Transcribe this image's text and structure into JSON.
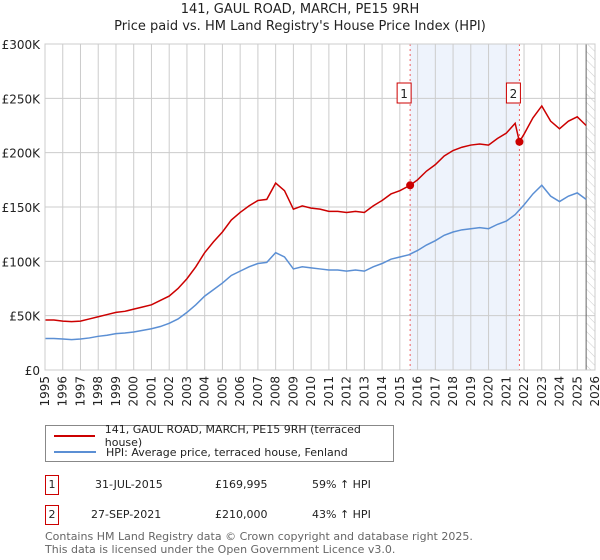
{
  "chart_data": {
    "type": "line",
    "title": "141, GAUL ROAD, MARCH, PE15 9RH",
    "subtitle": "Price paid vs. HM Land Registry's House Price Index (HPI)",
    "xlim": [
      1995,
      2026
    ],
    "ylim": [
      0,
      300000
    ],
    "yticks": [
      {
        "v": 0,
        "label": "£0"
      },
      {
        "v": 50000,
        "label": "£50K"
      },
      {
        "v": 100000,
        "label": "£100K"
      },
      {
        "v": 150000,
        "label": "£150K"
      },
      {
        "v": 200000,
        "label": "£200K"
      },
      {
        "v": 250000,
        "label": "£250K"
      },
      {
        "v": 300000,
        "label": "£300K"
      }
    ],
    "xticks": [
      "1995",
      "1996",
      "1997",
      "1998",
      "1999",
      "2000",
      "2001",
      "2002",
      "2003",
      "2004",
      "2005",
      "2006",
      "2007",
      "2008",
      "2009",
      "2010",
      "2011",
      "2012",
      "2013",
      "2014",
      "2015",
      "2016",
      "2017",
      "2018",
      "2019",
      "2020",
      "2021",
      "2022",
      "2023",
      "2024",
      "2025",
      "2026"
    ],
    "grid": true,
    "shaded_period": [
      2015.58,
      2021.74
    ],
    "future_hatch_from": 2025.5,
    "series": [
      {
        "name": "141, GAUL ROAD, MARCH, PE15 9RH (terraced house)",
        "color": "#cc0000",
        "points": [
          [
            1995,
            46
          ],
          [
            1995.5,
            46
          ],
          [
            1996,
            45
          ],
          [
            1996.5,
            44.5
          ],
          [
            1997,
            45
          ],
          [
            1997.5,
            47
          ],
          [
            1998,
            49
          ],
          [
            1998.5,
            51
          ],
          [
            1999,
            53
          ],
          [
            1999.5,
            54
          ],
          [
            2000,
            56
          ],
          [
            2000.5,
            58
          ],
          [
            2001,
            60
          ],
          [
            2001.5,
            64
          ],
          [
            2002,
            68
          ],
          [
            2002.5,
            75
          ],
          [
            2003,
            84
          ],
          [
            2003.5,
            95
          ],
          [
            2004,
            108
          ],
          [
            2004.5,
            118
          ],
          [
            2005,
            127
          ],
          [
            2005.5,
            138
          ],
          [
            2006,
            145
          ],
          [
            2006.5,
            151
          ],
          [
            2007,
            156
          ],
          [
            2007.5,
            157
          ],
          [
            2008,
            172
          ],
          [
            2008.5,
            165
          ],
          [
            2009,
            148
          ],
          [
            2009.5,
            151
          ],
          [
            2010,
            149
          ],
          [
            2010.5,
            148
          ],
          [
            2011,
            146
          ],
          [
            2011.5,
            146
          ],
          [
            2012,
            145
          ],
          [
            2012.5,
            146
          ],
          [
            2013,
            145
          ],
          [
            2013.5,
            151
          ],
          [
            2014,
            156
          ],
          [
            2014.5,
            162
          ],
          [
            2015,
            165
          ],
          [
            2015.58,
            170
          ],
          [
            2016,
            175
          ],
          [
            2016.5,
            183
          ],
          [
            2017,
            189
          ],
          [
            2017.5,
            197
          ],
          [
            2018,
            202
          ],
          [
            2018.5,
            205
          ],
          [
            2019,
            207
          ],
          [
            2019.5,
            208
          ],
          [
            2020,
            207
          ],
          [
            2020.5,
            213
          ],
          [
            2021,
            218
          ],
          [
            2021.5,
            227
          ],
          [
            2021.74,
            210
          ],
          [
            2022,
            217
          ],
          [
            2022.5,
            232
          ],
          [
            2023,
            243
          ],
          [
            2023.5,
            229
          ],
          [
            2024,
            222
          ],
          [
            2024.5,
            229
          ],
          [
            2025,
            233
          ],
          [
            2025.5,
            225
          ]
        ]
      },
      {
        "name": "HPI: Average price, terraced house, Fenland",
        "color": "#5b8fd4",
        "points": [
          [
            1995,
            29
          ],
          [
            1995.5,
            29
          ],
          [
            1996,
            28.5
          ],
          [
            1996.5,
            28
          ],
          [
            1997,
            28.5
          ],
          [
            1997.5,
            29.5
          ],
          [
            1998,
            31
          ],
          [
            1998.5,
            32
          ],
          [
            1999,
            33.5
          ],
          [
            1999.5,
            34
          ],
          [
            2000,
            35
          ],
          [
            2000.5,
            36.5
          ],
          [
            2001,
            38
          ],
          [
            2001.5,
            40
          ],
          [
            2002,
            43
          ],
          [
            2002.5,
            47
          ],
          [
            2003,
            53
          ],
          [
            2003.5,
            60
          ],
          [
            2004,
            68
          ],
          [
            2004.5,
            74
          ],
          [
            2005,
            80
          ],
          [
            2005.5,
            87
          ],
          [
            2006,
            91
          ],
          [
            2006.5,
            95
          ],
          [
            2007,
            98
          ],
          [
            2007.5,
            99
          ],
          [
            2008,
            108
          ],
          [
            2008.5,
            104
          ],
          [
            2009,
            93
          ],
          [
            2009.5,
            95
          ],
          [
            2010,
            94
          ],
          [
            2010.5,
            93
          ],
          [
            2011,
            92
          ],
          [
            2011.5,
            92
          ],
          [
            2012,
            91
          ],
          [
            2012.5,
            92
          ],
          [
            2013,
            91
          ],
          [
            2013.5,
            95
          ],
          [
            2014,
            98
          ],
          [
            2014.5,
            102
          ],
          [
            2015,
            104
          ],
          [
            2015.5,
            106
          ],
          [
            2016,
            110
          ],
          [
            2016.5,
            115
          ],
          [
            2017,
            119
          ],
          [
            2017.5,
            124
          ],
          [
            2018,
            127
          ],
          [
            2018.5,
            129
          ],
          [
            2019,
            130
          ],
          [
            2019.5,
            131
          ],
          [
            2020,
            130
          ],
          [
            2020.5,
            134
          ],
          [
            2021,
            137
          ],
          [
            2021.5,
            143
          ],
          [
            2022,
            152
          ],
          [
            2022.5,
            162
          ],
          [
            2023,
            170
          ],
          [
            2023.5,
            160
          ],
          [
            2024,
            155
          ],
          [
            2024.5,
            160
          ],
          [
            2025,
            163
          ],
          [
            2025.5,
            157
          ]
        ]
      }
    ],
    "y_unit": "thousands GBP",
    "sales": [
      {
        "label": "1",
        "x": 2015.58,
        "y": 169.995
      },
      {
        "label": "2",
        "x": 2021.74,
        "y": 210
      }
    ]
  },
  "transactions": [
    {
      "num": "1",
      "date": "31-JUL-2015",
      "price": "£169,995",
      "hpi": "59% ↑ HPI"
    },
    {
      "num": "2",
      "date": "27-SEP-2021",
      "price": "£210,000",
      "hpi": "43% ↑ HPI"
    }
  ],
  "footer": [
    "Contains HM Land Registry data © Crown copyright and database right 2025.",
    "This data is licensed under the Open Government Licence v3.0."
  ]
}
